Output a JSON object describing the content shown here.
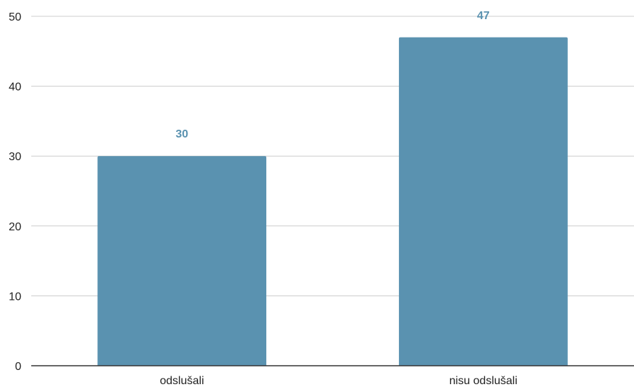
{
  "chart_data": {
    "type": "bar",
    "categories": [
      "odslušali",
      "nisu odslušali"
    ],
    "values": [
      30,
      47
    ],
    "data_labels": [
      "30",
      "47"
    ],
    "title": "",
    "xlabel": "",
    "ylabel": "",
    "ylim": [
      0,
      50
    ],
    "yticks": [
      0,
      10,
      20,
      30,
      40,
      50
    ],
    "ytick_labels": [
      "0",
      "10",
      "20",
      "30",
      "40",
      "50"
    ],
    "grid": true,
    "legend": "none",
    "bar_color": "#5a92b0",
    "label_color": "#5a92b0",
    "grid_color": "#cccccc",
    "axis_color": "#333333"
  }
}
